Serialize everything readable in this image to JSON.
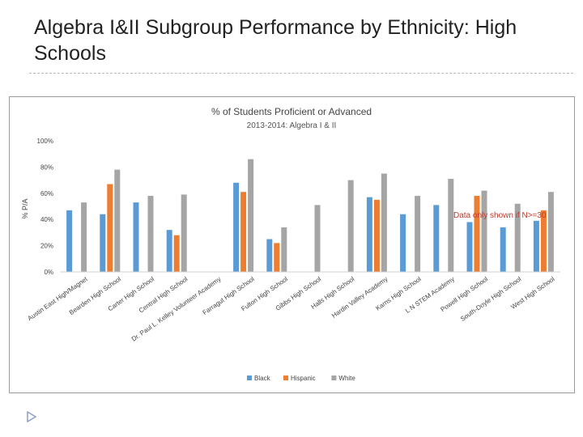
{
  "slide": {
    "title": "Algebra I&II Subgroup Performance by Ethnicity: High Schools",
    "note": "Data only shown if N>=30"
  },
  "colors": {
    "Black": "#5b9bd5",
    "Hispanic": "#ed7d31",
    "White": "#a5a5a5"
  },
  "chart_data": {
    "type": "bar",
    "title": "% of Students Proficient or Advanced",
    "subtitle": "2013-2014:  Algebra I & II",
    "xlabel": "",
    "ylabel": "% P/A",
    "ylim": [
      0,
      100
    ],
    "yticks": [
      "0%",
      "20%",
      "40%",
      "60%",
      "80%",
      "100%"
    ],
    "grid": false,
    "legend_position": "bottom",
    "categories": [
      "Austin East High/Magnet",
      "Bearden High School",
      "Carter High School",
      "Central High School",
      "Dr. Paul L. Kelley Volunteer Academy",
      "Farragut High School",
      "Fulton High School",
      "Gibbs High School",
      "Halls High School",
      "Hardin Valley Academy",
      "Karns High School",
      "L N STEM Academy",
      "Powell High School",
      "South-Doyle High School",
      "West High School"
    ],
    "series": [
      {
        "name": "Black",
        "values": [
          47,
          44,
          53,
          32,
          null,
          68,
          25,
          null,
          null,
          57,
          44,
          51,
          38,
          34,
          39
        ]
      },
      {
        "name": "Hispanic",
        "values": [
          null,
          67,
          null,
          28,
          null,
          61,
          22,
          null,
          null,
          55,
          null,
          null,
          58,
          null,
          47
        ]
      },
      {
        "name": "White",
        "values": [
          53,
          78,
          58,
          59,
          null,
          86,
          34,
          51,
          70,
          75,
          58,
          71,
          62,
          52,
          61
        ]
      }
    ]
  }
}
